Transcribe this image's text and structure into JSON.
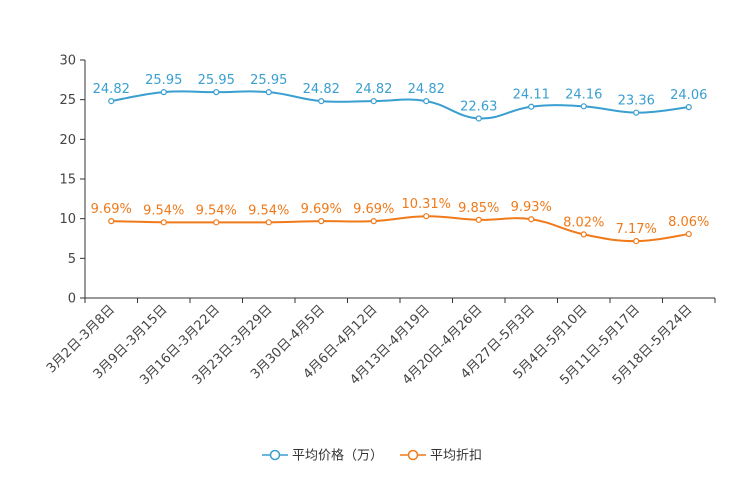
{
  "chart_data": {
    "type": "line",
    "title": "",
    "xlabel": "",
    "ylabel": "",
    "ylim": [
      0,
      30
    ],
    "yticks": [
      0,
      5,
      10,
      15,
      20,
      25,
      30
    ],
    "grid": false,
    "legend_position": "bottom-center",
    "categories": [
      "3月2日-3月8日",
      "3月9日-3月15日",
      "3月16日-3月22日",
      "3月23日-3月29日",
      "3月30日-4月5日",
      "4月6日-4月12日",
      "4月13日-4月19日",
      "4月20日-4月26日",
      "4月27日-5月3日",
      "5月4日-5月10日",
      "5月11日-5月17日",
      "5月18日-5月24日"
    ],
    "series": [
      {
        "name": "平均价格（万）",
        "color": "#3a9fd0",
        "values": [
          24.82,
          25.95,
          25.95,
          25.95,
          24.82,
          24.82,
          24.82,
          22.63,
          24.11,
          24.16,
          23.36,
          24.06
        ],
        "labels": [
          "24.82",
          "25.95",
          "25.95",
          "25.95",
          "24.82",
          "24.82",
          "24.82",
          "22.63",
          "24.11",
          "24.16",
          "23.36",
          "24.06"
        ]
      },
      {
        "name": "平均折扣",
        "color": "#f07a1a",
        "values": [
          9.69,
          9.54,
          9.54,
          9.54,
          9.69,
          9.69,
          10.31,
          9.85,
          9.93,
          8.02,
          7.17,
          8.06
        ],
        "labels": [
          "9.69%",
          "9.54%",
          "9.54%",
          "9.54%",
          "9.69%",
          "9.69%",
          "10.31%",
          "9.85%",
          "9.93%",
          "8.02%",
          "7.17%",
          "8.06%"
        ]
      }
    ]
  }
}
